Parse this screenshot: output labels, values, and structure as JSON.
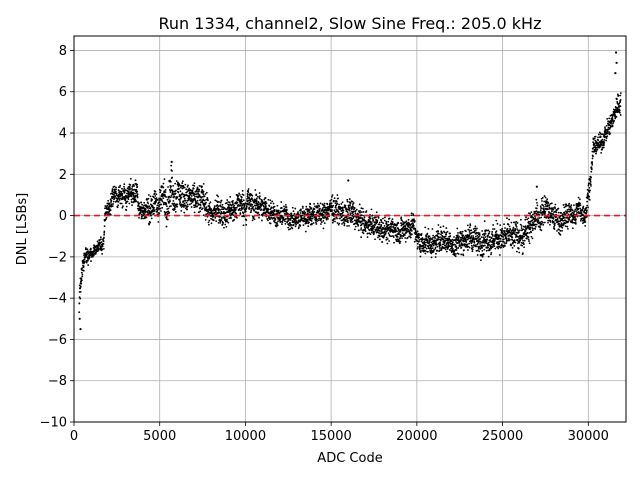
{
  "chart_data": {
    "type": "scatter",
    "title": "Run 1334, channel2, Slow Sine Freq.: 205.0 kHz",
    "xlabel": "ADC Code",
    "ylabel": "DNL [LSBs]",
    "xlim": [
      0,
      32200
    ],
    "ylim": [
      -10,
      8.7
    ],
    "xticks": [
      0,
      5000,
      10000,
      15000,
      20000,
      25000,
      30000
    ],
    "yticks": [
      -10,
      -8,
      -6,
      -4,
      -2,
      0,
      2,
      4,
      6,
      8
    ],
    "grid": true,
    "colors": {
      "points": "#000000",
      "reference_line": "#e41a1c",
      "grid": "#b0b0b0"
    },
    "reference_line": {
      "y": 0,
      "style": "dashed"
    },
    "envelope": {
      "description_points": "x (ADC code), center DNL, spread in LSBs",
      "x": [
        300,
        380,
        500,
        700,
        1000,
        1300,
        1600,
        1750,
        1800,
        2000,
        2300,
        2700,
        3100,
        3600,
        3850,
        4000,
        4500,
        5000,
        5400,
        5700,
        6200,
        6700,
        7200,
        7700,
        8000,
        8500,
        9000,
        9500,
        10000,
        10400,
        10800,
        11200,
        11800,
        12400,
        13000,
        13800,
        14500,
        15200,
        15800,
        16100,
        16500,
        17000,
        17800,
        18500,
        19200,
        19800,
        20200,
        20800,
        21500,
        22200,
        23000,
        23800,
        24400,
        25000,
        25600,
        26200,
        26500,
        27000,
        27500,
        28000,
        28500,
        29000,
        29500,
        29900,
        30100,
        30300,
        30700,
        31000,
        31300,
        31500,
        31700,
        31900
      ],
      "center": [
        -4.2,
        -3.6,
        -2.6,
        -2.0,
        -1.8,
        -1.6,
        -1.4,
        -1.3,
        0.1,
        0.3,
        1.1,
        0.8,
        1.0,
        1.3,
        0.2,
        0.3,
        0.5,
        0.7,
        0.9,
        1.4,
        0.9,
        0.8,
        0.8,
        0.5,
        0.1,
        0.2,
        0.3,
        0.4,
        0.5,
        0.6,
        0.5,
        0.4,
        0.1,
        0.0,
        -0.1,
        0.1,
        0.1,
        0.3,
        0.1,
        0.0,
        -0.2,
        -0.4,
        -0.5,
        -0.6,
        -0.7,
        -0.5,
        -1.4,
        -1.3,
        -1.2,
        -1.4,
        -1.1,
        -1.2,
        -1.2,
        -1.1,
        -1.0,
        -1.0,
        -0.6,
        0.0,
        0.3,
        0.0,
        -0.2,
        0.0,
        0.3,
        0.3,
        1.5,
        3.3,
        3.4,
        4.0,
        4.4,
        4.7,
        5.3,
        5.7
      ],
      "spread": [
        0.9,
        0.7,
        0.5,
        0.4,
        0.4,
        0.35,
        0.4,
        0.4,
        0.5,
        0.6,
        0.6,
        0.6,
        0.6,
        0.7,
        0.6,
        0.7,
        0.8,
        0.9,
        1.0,
        1.1,
        0.9,
        0.8,
        0.8,
        0.8,
        0.7,
        0.7,
        0.7,
        0.8,
        0.8,
        0.8,
        0.7,
        0.7,
        0.6,
        0.6,
        0.6,
        0.6,
        0.6,
        0.7,
        0.7,
        0.8,
        0.7,
        0.7,
        0.7,
        0.7,
        0.7,
        0.7,
        0.7,
        0.7,
        0.7,
        0.7,
        0.8,
        0.8,
        0.8,
        0.8,
        0.8,
        0.8,
        0.8,
        0.8,
        0.8,
        0.7,
        0.7,
        0.7,
        0.7,
        0.7,
        0.6,
        0.5,
        0.5,
        0.5,
        0.5,
        0.6,
        0.7,
        1.0
      ]
    },
    "outliers": [
      {
        "x": 380,
        "y": -5.5
      },
      {
        "x": 330,
        "y": -5.0
      },
      {
        "x": 5700,
        "y": 2.6
      },
      {
        "x": 16000,
        "y": 1.7
      },
      {
        "x": 27000,
        "y": 1.4
      },
      {
        "x": 31620,
        "y": 7.9
      },
      {
        "x": 31650,
        "y": 7.4
      },
      {
        "x": 31580,
        "y": 6.9
      }
    ]
  }
}
